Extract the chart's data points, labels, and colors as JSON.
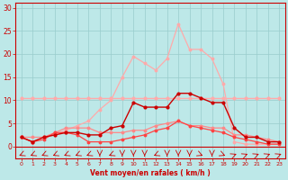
{
  "x": [
    0,
    1,
    2,
    3,
    4,
    5,
    6,
    7,
    8,
    9,
    10,
    11,
    12,
    13,
    14,
    15,
    16,
    17,
    18,
    19,
    20,
    21,
    22,
    23
  ],
  "line_flat": [
    10.5,
    10.5,
    10.5,
    10.5,
    10.5,
    10.5,
    10.5,
    10.5,
    10.5,
    10.5,
    10.5,
    10.5,
    10.5,
    10.5,
    10.5,
    10.5,
    10.5,
    10.5,
    10.5,
    10.5,
    10.5,
    10.5,
    10.5,
    10.5
  ],
  "line_dark": [
    2.0,
    1.0,
    2.0,
    2.5,
    3.0,
    3.0,
    2.5,
    2.5,
    4.0,
    4.5,
    9.5,
    8.5,
    8.5,
    8.5,
    11.5,
    11.5,
    10.5,
    9.5,
    9.5,
    4.0,
    2.0,
    2.0,
    1.0,
    1.0
  ],
  "line_med1": [
    2.0,
    2.0,
    2.0,
    3.0,
    4.0,
    4.0,
    4.0,
    3.0,
    3.0,
    3.0,
    3.5,
    3.5,
    4.5,
    5.0,
    5.5,
    4.5,
    4.5,
    4.0,
    4.0,
    2.5,
    2.5,
    2.0,
    1.5,
    1.0
  ],
  "line_med2": [
    2.0,
    1.0,
    1.5,
    3.0,
    3.0,
    2.5,
    1.0,
    1.0,
    1.0,
    1.5,
    2.0,
    2.5,
    3.5,
    4.0,
    5.5,
    4.5,
    4.0,
    3.5,
    3.0,
    2.0,
    1.5,
    1.0,
    0.5,
    0.5
  ],
  "line_light": [
    2.0,
    1.0,
    2.0,
    2.5,
    3.5,
    4.5,
    5.5,
    8.0,
    10.0,
    15.0,
    19.5,
    18.0,
    16.5,
    19.0,
    26.5,
    21.0,
    21.0,
    19.0,
    13.5,
    1.0,
    0.5,
    0.5,
    0.5,
    0.5
  ],
  "arrow_angles_deg": [
    225,
    225,
    225,
    225,
    225,
    225,
    225,
    270,
    225,
    270,
    270,
    270,
    225,
    270,
    270,
    270,
    315,
    270,
    315,
    45,
    45,
    45,
    45,
    45
  ],
  "color_flat": "#ffaaaa",
  "color_dark": "#cc0000",
  "color_med1": "#ff8888",
  "color_med2": "#ff4444",
  "color_light": "#ffaaaa",
  "bg_color": "#bde8e8",
  "grid_color": "#99cccc",
  "axis_color": "#cc0000",
  "text_color": "#cc0000",
  "xlabel": "Vent moyen/en rafales ( km/h )",
  "yticks": [
    0,
    5,
    10,
    15,
    20,
    25,
    30
  ],
  "ylim": [
    -2.5,
    31
  ],
  "xlim": [
    -0.5,
    23.5
  ]
}
